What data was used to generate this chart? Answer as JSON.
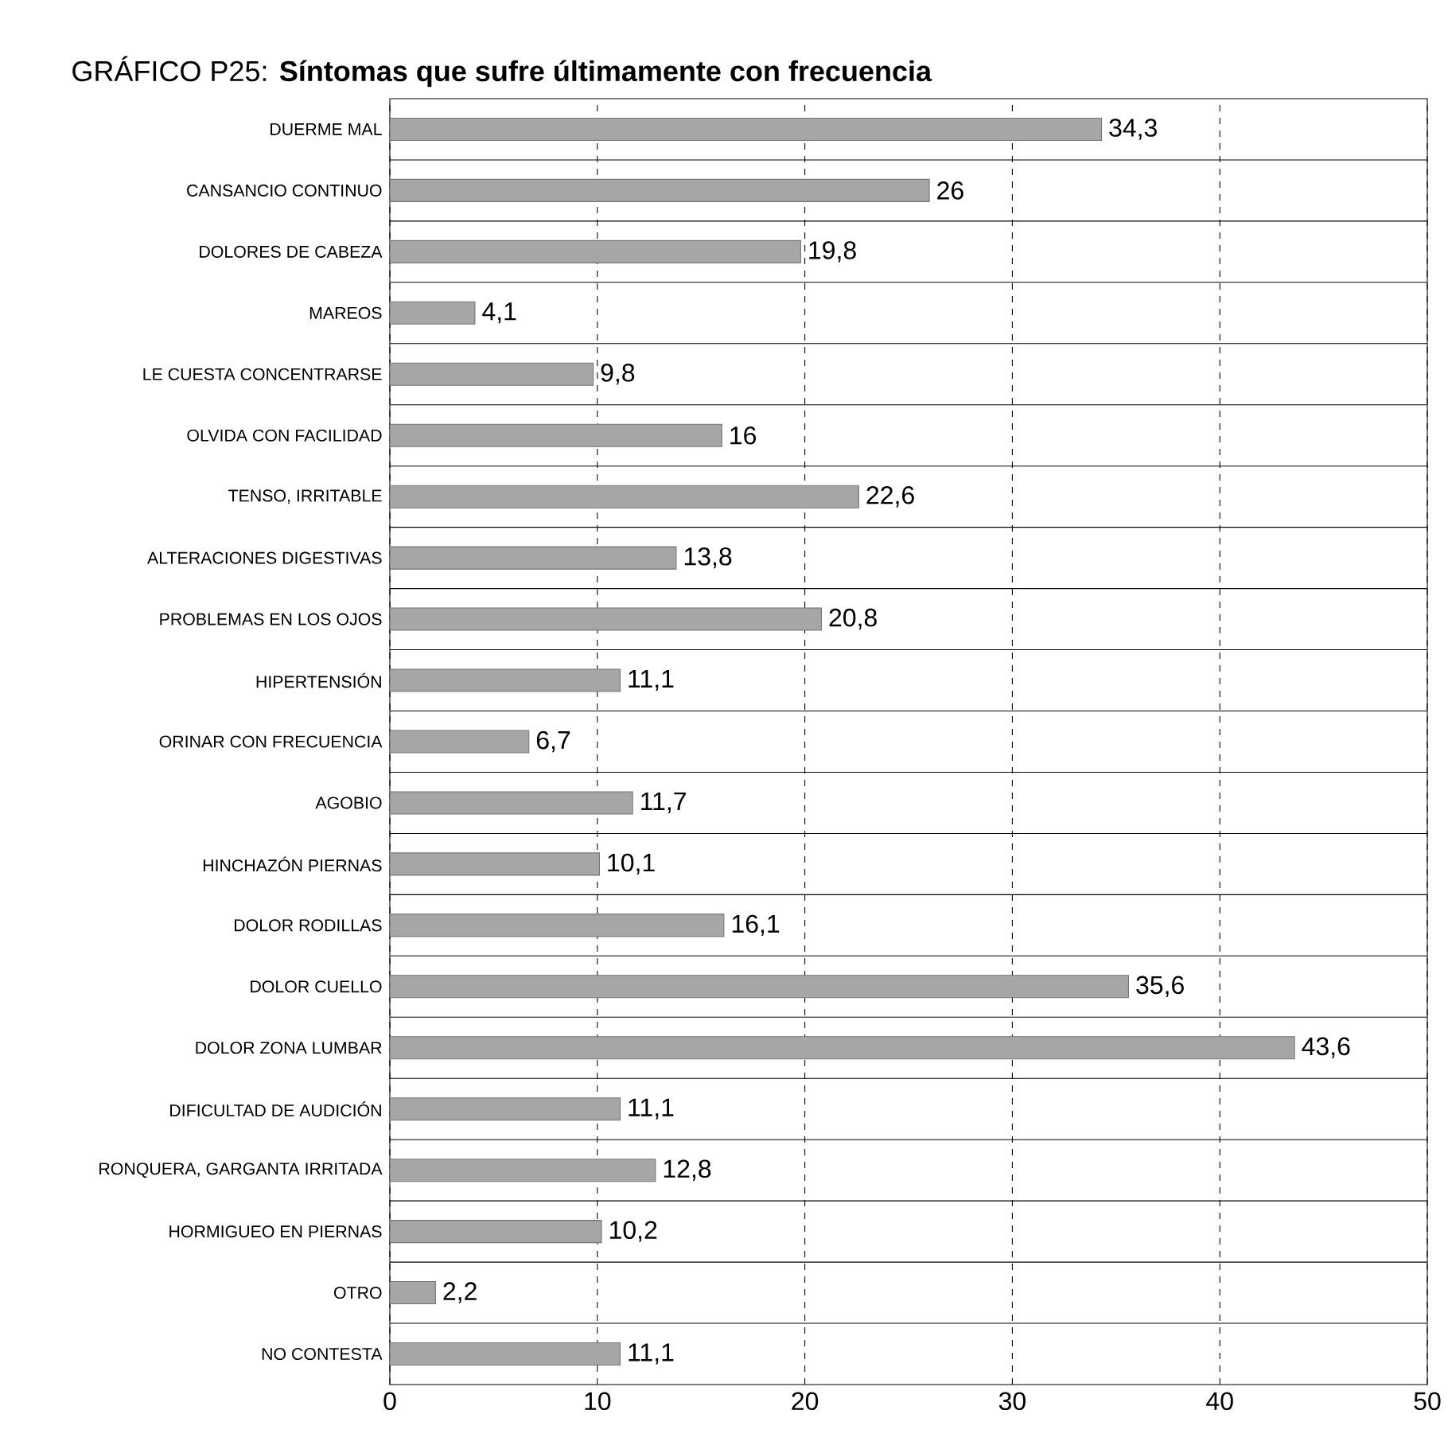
{
  "chart_data": {
    "type": "bar",
    "orientation": "horizontal",
    "title": "GRÁFICO P25: **Síntomas que sufre últimamente con frecuencia**",
    "categories": [
      "DUERME MAL",
      "CANSANCIO CONTINUO",
      "DOLORES DE CABEZA",
      "MAREOS",
      "LE CUESTA CONCENTRARSE",
      "OLVIDA CON FACILIDAD",
      "TENSO, IRRITABLE",
      "ALTERACIONES DIGESTIVAS",
      "PROBLEMAS EN LOS OJOS",
      "HIPERTENSIÓN",
      "ORINAR CON FRECUENCIA",
      "AGOBIO",
      "HINCHAZÓN PIERNAS",
      "DOLOR RODILLAS",
      "DOLOR CUELLO",
      "DOLOR ZONA LUMBAR",
      "DIFICULTAD DE AUDICIÓN",
      "RONQUERA, GARGANTA IRRITADA",
      "HORMIGUEO EN PIERNAS",
      "OTRO",
      "NO CONTESTA"
    ],
    "values": [
      34.3,
      26,
      19.8,
      4.1,
      9.8,
      16,
      22.6,
      13.8,
      20.8,
      11.1,
      6.7,
      11.7,
      10.1,
      16.1,
      35.6,
      43.6,
      11.1,
      12.8,
      10.2,
      2.2,
      11.1
    ],
    "value_labels": [
      "34,3",
      "26",
      "19,8",
      "4,1",
      "9,8",
      "16",
      "22,6",
      "13,8",
      "20,8",
      "11,1",
      "6,7",
      "11,7",
      "10,1",
      "16,1",
      "35,6",
      "43,6",
      "11,1",
      "12,8",
      "10,2",
      "2,2",
      "11,1"
    ],
    "color": "#a6a6a6",
    "xlim": [
      0,
      50
    ],
    "xticks": [
      0,
      10,
      20,
      30,
      40,
      50
    ],
    "grid": "x"
  }
}
